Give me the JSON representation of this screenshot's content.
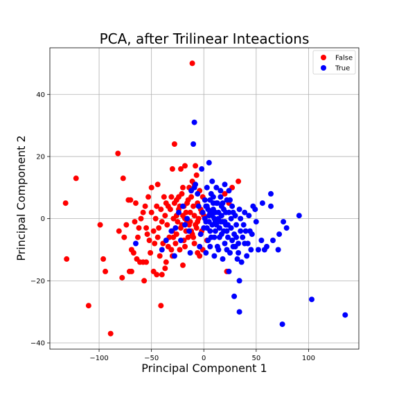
{
  "chart_data": {
    "type": "scatter",
    "title": "PCA, after Trilinear Inteactions",
    "xlabel": "Principal Component 1",
    "ylabel": "Principal Component 2",
    "xlim": [
      -147,
      148
    ],
    "ylim": [
      -42,
      55
    ],
    "xticks": [
      -100,
      -50,
      0,
      50,
      100
    ],
    "yticks": [
      -40,
      -20,
      0,
      20,
      40
    ],
    "grid": true,
    "legend": "top-right",
    "series": [
      {
        "name": "False",
        "color": "#ff0000",
        "points": [
          [
            -11,
            50
          ],
          [
            -82,
            21
          ],
          [
            -28,
            24
          ],
          [
            -122,
            13
          ],
          [
            -132,
            5
          ],
          [
            -131,
            -13
          ],
          [
            -110,
            -28
          ],
          [
            -89,
            -37
          ],
          [
            -99,
            -2
          ],
          [
            -96,
            -13
          ],
          [
            -94,
            -17
          ],
          [
            -78,
            -19
          ],
          [
            -77,
            13
          ],
          [
            -72,
            6
          ],
          [
            -70,
            6
          ],
          [
            -69,
            -10
          ],
          [
            -69,
            -17
          ],
          [
            -71,
            -17
          ],
          [
            -67,
            -11
          ],
          [
            -64,
            -13
          ],
          [
            -63,
            -6
          ],
          [
            -61,
            -14
          ],
          [
            -58,
            -14
          ],
          [
            -57,
            -20
          ],
          [
            -55,
            -14
          ],
          [
            -51,
            -11
          ],
          [
            -48,
            -17
          ],
          [
            -45,
            -18
          ],
          [
            -40,
            -18
          ],
          [
            -41,
            -28
          ],
          [
            -30,
            -12
          ],
          [
            -34,
            -9
          ],
          [
            -30,
            -4
          ],
          [
            -26,
            -5
          ],
          [
            -22,
            -3
          ],
          [
            -20,
            -15
          ],
          [
            -18,
            -9
          ],
          [
            -15,
            -6
          ],
          [
            -12,
            -4
          ],
          [
            -9,
            -8
          ],
          [
            -6,
            -11
          ],
          [
            -4,
            -12
          ],
          [
            -1,
            -10
          ],
          [
            3,
            -7
          ],
          [
            -50,
            10
          ],
          [
            -38,
            7
          ],
          [
            -30,
            16
          ],
          [
            -22,
            16
          ],
          [
            -18,
            17
          ],
          [
            -8,
            17
          ],
          [
            -14,
            10
          ],
          [
            -9,
            11
          ],
          [
            -4,
            9
          ],
          [
            -1,
            7
          ],
          [
            -60,
            0
          ],
          [
            -55,
            -3
          ],
          [
            -50,
            2
          ],
          [
            -45,
            4
          ],
          [
            -40,
            -1
          ],
          [
            -35,
            -2
          ],
          [
            -32,
            3
          ],
          [
            -28,
            5
          ],
          [
            -24,
            3
          ],
          [
            -20,
            1
          ],
          [
            -16,
            -1
          ],
          [
            -13,
            2
          ],
          [
            -10,
            4
          ],
          [
            -8,
            -2
          ],
          [
            -5,
            0
          ],
          [
            -2,
            2
          ],
          [
            -44,
            -6
          ],
          [
            -39,
            -8
          ],
          [
            -33,
            -6
          ],
          [
            -27,
            -8
          ],
          [
            -23,
            -10
          ],
          [
            -19,
            -7
          ],
          [
            -17,
            -4
          ],
          [
            -14,
            -2
          ],
          [
            -11,
            -5
          ],
          [
            -7,
            -3
          ],
          [
            -3,
            -5
          ],
          [
            -46,
            0
          ],
          [
            -41,
            3
          ],
          [
            -36,
            5
          ],
          [
            -31,
            7
          ],
          [
            -26,
            6
          ],
          [
            -21,
            8
          ],
          [
            -19,
            4
          ],
          [
            -15,
            6
          ],
          [
            -12,
            7
          ],
          [
            -6,
            5
          ],
          [
            -3,
            3
          ],
          [
            -56,
            4
          ],
          [
            -52,
            -7
          ],
          [
            -48,
            -4
          ],
          [
            -43,
            -3
          ],
          [
            -37,
            1
          ],
          [
            -34,
            4
          ],
          [
            -29,
            0
          ],
          [
            -25,
            -1
          ],
          [
            -21,
            -2
          ],
          [
            -17,
            2
          ],
          [
            -13,
            -1
          ],
          [
            -9,
            1
          ],
          [
            -6,
            -1
          ],
          [
            -81,
            -4
          ],
          [
            -76,
            -6
          ],
          [
            -74,
            -2
          ],
          [
            -66,
            -1
          ],
          [
            -62,
            -3
          ],
          [
            -58,
            2
          ],
          [
            -54,
            -5
          ],
          [
            -47,
            -8
          ],
          [
            -42,
            -12
          ],
          [
            -36,
            -14
          ],
          [
            -31,
            -10
          ],
          [
            27,
            10
          ],
          [
            33,
            12
          ],
          [
            22,
            -17
          ],
          [
            24,
            5
          ],
          [
            20,
            8
          ],
          [
            -26,
            1
          ],
          [
            -23,
            4
          ],
          [
            -18,
            0
          ],
          [
            -10,
            -6
          ],
          [
            -65,
            5
          ],
          [
            -53,
            7
          ],
          [
            -44,
            11
          ],
          [
            -37,
            -16
          ],
          [
            -29,
            -6
          ],
          [
            -24,
            7
          ],
          [
            -20,
            10
          ],
          [
            -11,
            12
          ],
          [
            -7,
            14
          ],
          [
            -16,
            5
          ],
          [
            -2,
            -4
          ],
          [
            0,
            1
          ]
        ]
      },
      {
        "name": "True",
        "color": "#0000ff",
        "points": [
          [
            -9,
            31
          ],
          [
            -10,
            24
          ],
          [
            -2,
            16
          ],
          [
            5,
            18
          ],
          [
            -65,
            -8
          ],
          [
            -28,
            -12
          ],
          [
            24,
            -17
          ],
          [
            29,
            -25
          ],
          [
            34,
            -20
          ],
          [
            34,
            -30
          ],
          [
            75,
            -34
          ],
          [
            103,
            -26
          ],
          [
            135,
            -31
          ],
          [
            91,
            1
          ],
          [
            79,
            -3
          ],
          [
            76,
            -1
          ],
          [
            72,
            -5
          ],
          [
            71,
            -10
          ],
          [
            64,
            8
          ],
          [
            64,
            4
          ],
          [
            58,
            -10
          ],
          [
            56,
            5
          ],
          [
            55,
            -7
          ],
          [
            50,
            -1
          ],
          [
            49,
            3
          ],
          [
            47,
            4
          ],
          [
            46,
            -5
          ],
          [
            44,
            -4
          ],
          [
            41,
            -12
          ],
          [
            40,
            -4
          ],
          [
            39,
            -8
          ],
          [
            38,
            -2
          ],
          [
            36,
            -14
          ],
          [
            35,
            -4
          ],
          [
            34,
            3
          ],
          [
            33,
            -8
          ],
          [
            32,
            -13
          ],
          [
            31,
            -2
          ],
          [
            30,
            1
          ],
          [
            29,
            -5
          ],
          [
            28,
            -9
          ],
          [
            27,
            4
          ],
          [
            26,
            -3
          ],
          [
            25,
            -11
          ],
          [
            24,
            2
          ],
          [
            23,
            -6
          ],
          [
            22,
            6
          ],
          [
            21,
            -2
          ],
          [
            20,
            -8
          ],
          [
            19,
            3
          ],
          [
            18,
            -1
          ],
          [
            17,
            -5
          ],
          [
            16,
            7
          ],
          [
            15,
            -3
          ],
          [
            14,
            2
          ],
          [
            13,
            -9
          ],
          [
            12,
            5
          ],
          [
            11,
            -1
          ],
          [
            10,
            -6
          ],
          [
            9,
            3
          ],
          [
            8,
            -2
          ],
          [
            7,
            8
          ],
          [
            6,
            -4
          ],
          [
            5,
            1
          ],
          [
            4,
            -7
          ],
          [
            3,
            4
          ],
          [
            2,
            -1
          ],
          [
            1,
            6
          ],
          [
            0,
            -3
          ],
          [
            -1,
            2
          ],
          [
            -3,
            -5
          ],
          [
            -5,
            4
          ],
          [
            -6,
            8
          ],
          [
            -8,
            11
          ],
          [
            -9,
            10
          ],
          [
            -12,
            9
          ],
          [
            -14,
            -4
          ],
          [
            -16,
            0
          ],
          [
            -18,
            -2
          ],
          [
            -20,
            4
          ],
          [
            -22,
            -7
          ],
          [
            -24,
            2
          ],
          [
            -27,
            -3
          ],
          [
            -31,
            -4
          ],
          [
            -36,
            -7
          ],
          [
            -40,
            -10
          ],
          [
            -13,
            -11
          ],
          [
            -4,
            -9
          ],
          [
            2,
            -11
          ],
          [
            6,
            -9
          ],
          [
            10,
            -12
          ],
          [
            14,
            -10
          ],
          [
            18,
            -13
          ],
          [
            22,
            -10
          ],
          [
            8,
            12
          ],
          [
            12,
            10
          ],
          [
            16,
            9
          ],
          [
            20,
            11
          ],
          [
            24,
            9
          ],
          [
            3,
            10
          ],
          [
            6,
            6
          ],
          [
            9,
            7
          ],
          [
            13,
            5
          ],
          [
            17,
            4
          ],
          [
            21,
            2
          ],
          [
            5,
            -1
          ],
          [
            8,
            1
          ],
          [
            11,
            2
          ],
          [
            14,
            0
          ],
          [
            17,
            1
          ],
          [
            20,
            -1
          ],
          [
            23,
            -2
          ],
          [
            26,
            0
          ],
          [
            7,
            -6
          ],
          [
            11,
            -4
          ],
          [
            15,
            -6
          ],
          [
            19,
            -4
          ],
          [
            4,
            3
          ],
          [
            9,
            5
          ],
          [
            27,
            -7
          ],
          [
            30,
            -9
          ],
          [
            33,
            -11
          ],
          [
            37,
            -6
          ],
          [
            42,
            -8
          ],
          [
            45,
            -10
          ],
          [
            52,
            -10
          ],
          [
            60,
            -9
          ],
          [
            66,
            -7
          ],
          [
            1,
            0
          ],
          [
            2,
            4
          ],
          [
            3,
            -3
          ],
          [
            6,
            2
          ],
          [
            10,
            0
          ],
          [
            12,
            -2
          ],
          [
            16,
            -1
          ],
          [
            18,
            5
          ],
          [
            22,
            -4
          ],
          [
            25,
            6
          ],
          [
            28,
            2
          ],
          [
            31,
            -6
          ],
          [
            35,
            0
          ],
          [
            39,
            2
          ],
          [
            43,
            1
          ]
        ]
      }
    ]
  }
}
